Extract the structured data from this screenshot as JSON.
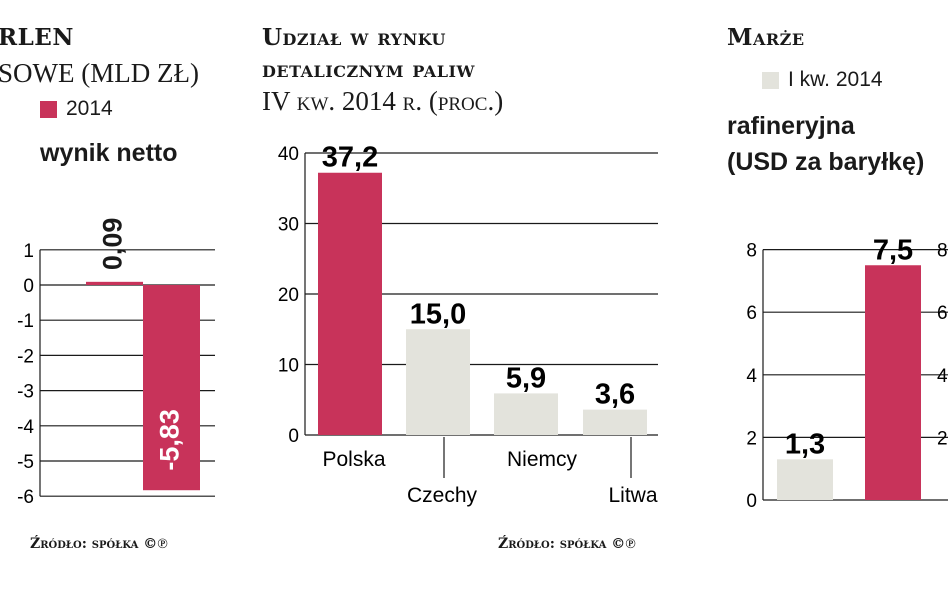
{
  "panel1": {
    "title_line1": "RLEN",
    "title_line2": "SOWE (MLD ZŁ)",
    "legend_label": "2014",
    "subtitle": "wynik netto",
    "source": "Źródło: spółka ©℗"
  },
  "panel2": {
    "title_line1": "Udział w rynku",
    "title_line2": "detalicznym paliw",
    "title_line3": "IV kw. 2014 r. (proc.)",
    "source": "Źródło: spółka ©℗"
  },
  "panel3": {
    "title": "Marże",
    "legend_label": "I kw. 2014",
    "subtitle_line1": "rafineryjna",
    "subtitle_line2": "(USD za baryłkę)"
  },
  "colors": {
    "accent": "#c8335a",
    "grey": "#e3e3dc",
    "axis": "#1a1a1a"
  },
  "chart_data": [
    {
      "type": "bar",
      "title": "wynik netto",
      "ylim": [
        -6,
        1
      ],
      "yticks": [
        "1",
        "0",
        "-1",
        "-2",
        "-3",
        "-4",
        "-5",
        "-6"
      ],
      "series": [
        {
          "values": [
            0.09,
            -5.83
          ]
        }
      ],
      "data_labels": [
        "0,09",
        "-5,83"
      ],
      "bar_colors": [
        "#c8335a",
        "#c8335a"
      ],
      "grid": true
    },
    {
      "type": "bar",
      "title": "Udział w rynku detalicznym paliw IV kw. 2014 r. (proc.)",
      "categories": [
        "Polska",
        "Czechy",
        "Niemcy",
        "Litwa"
      ],
      "values": [
        37.2,
        15.0,
        5.9,
        3.6
      ],
      "data_labels": [
        "37,2",
        "15,0",
        "5,9",
        "3,6"
      ],
      "yticks": [
        "0",
        "10",
        "20",
        "30",
        "40"
      ],
      "ylim": [
        0,
        40
      ],
      "bar_colors": [
        "#c8335a",
        "#e3e3dc",
        "#e3e3dc",
        "#e3e3dc"
      ],
      "grid": true
    },
    {
      "type": "bar",
      "title": "rafineryjna (USD za baryłkę)",
      "values": [
        1.3,
        7.5
      ],
      "data_labels": [
        "1,3",
        "7,5"
      ],
      "yticks": [
        "0",
        "2",
        "4",
        "6",
        "8"
      ],
      "ylim": [
        0,
        8
      ],
      "bar_colors": [
        "#e3e3dc",
        "#c8335a"
      ],
      "grid": true
    }
  ]
}
